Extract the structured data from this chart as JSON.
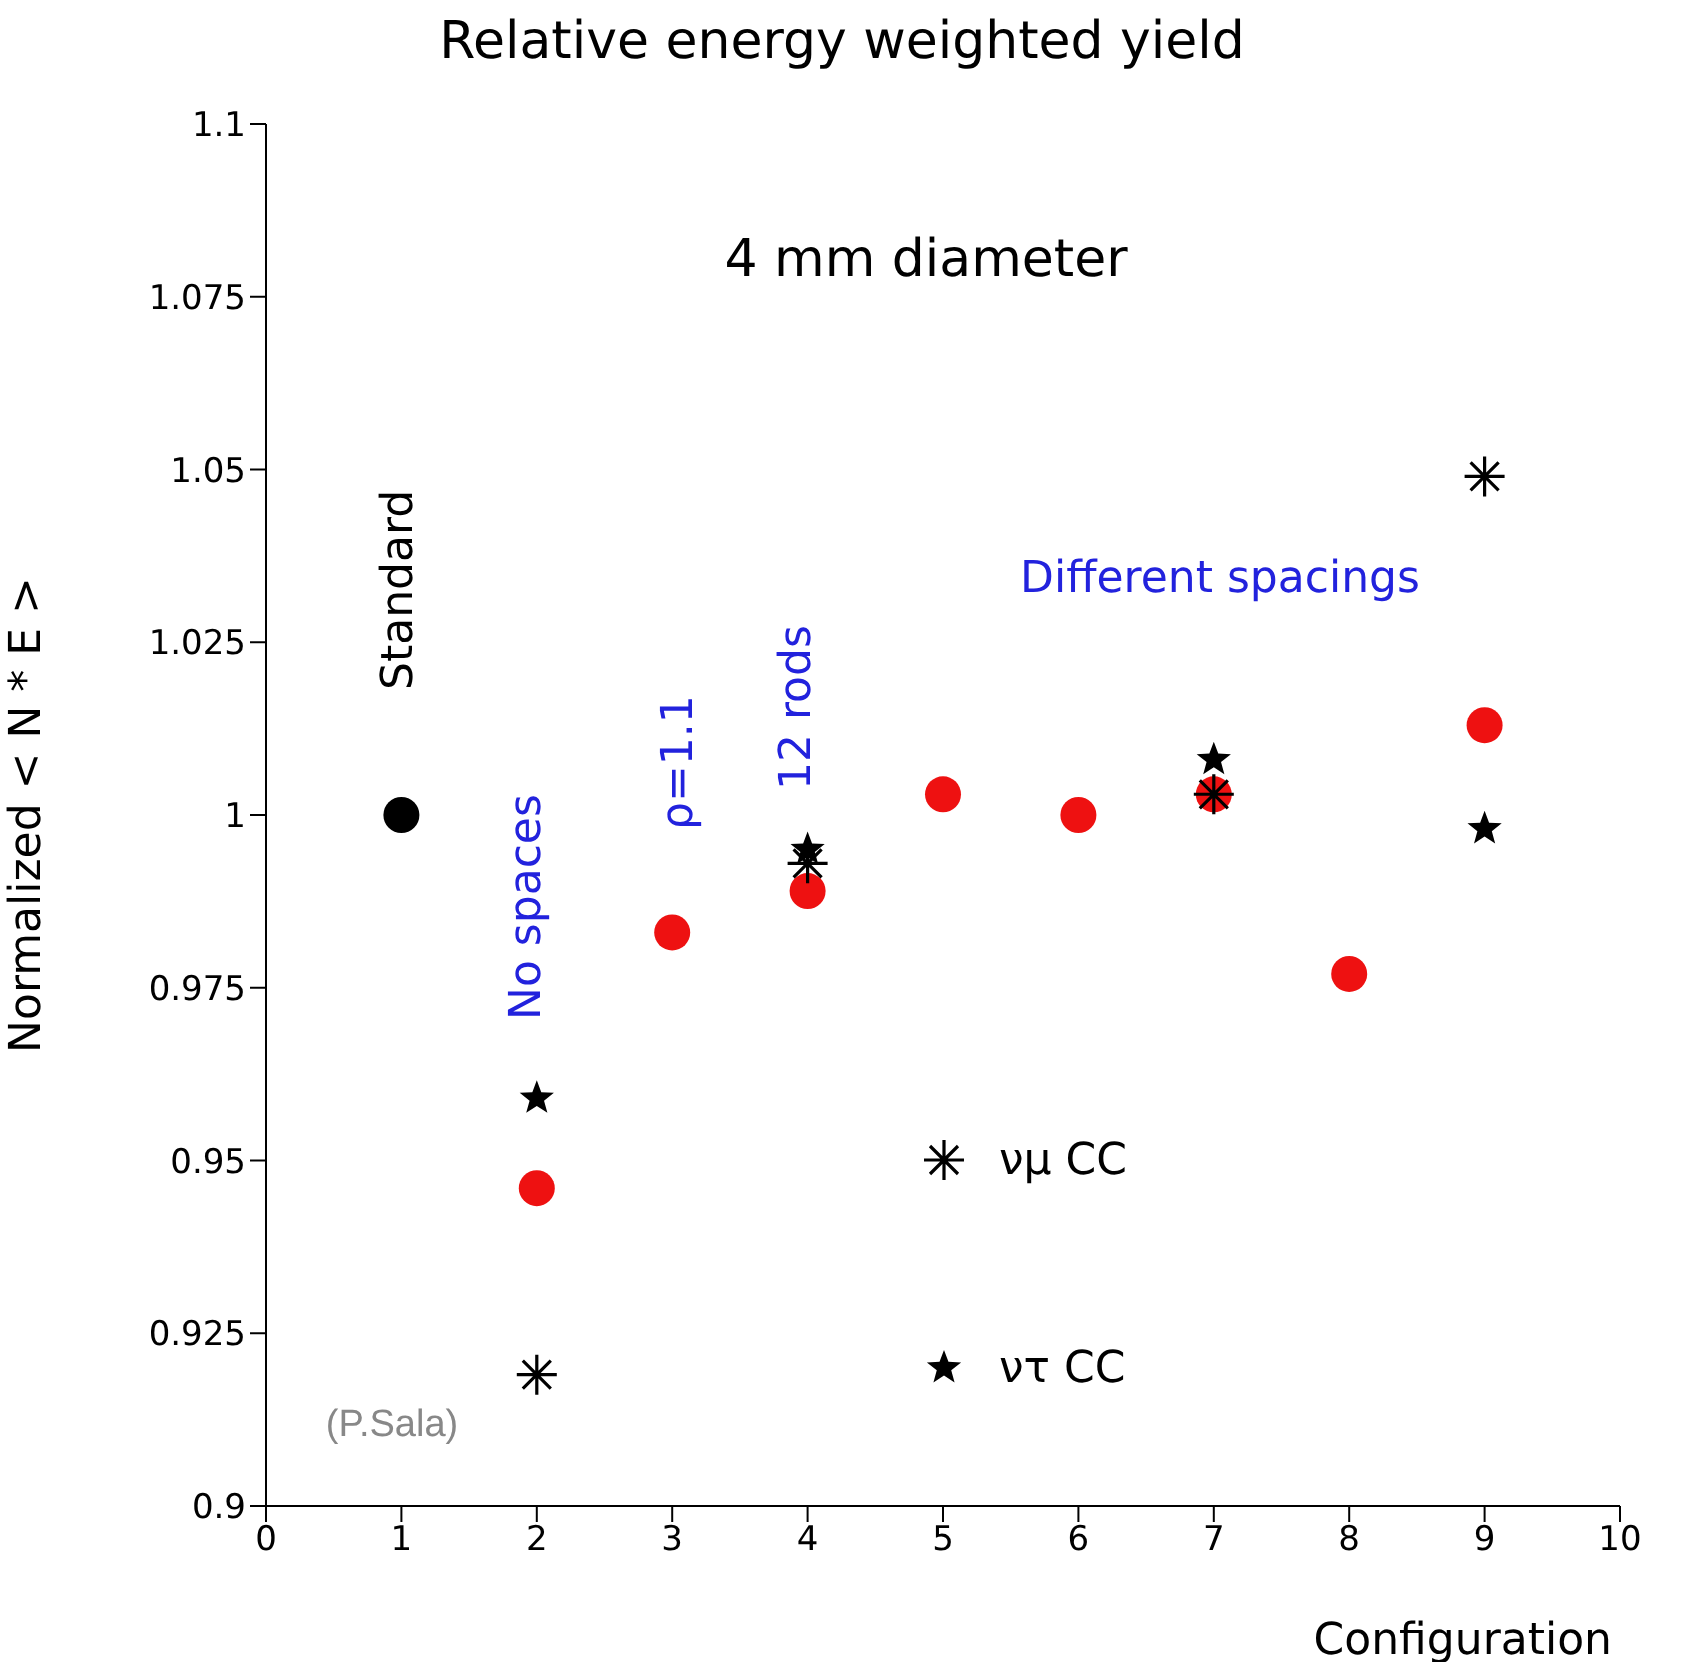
{
  "chart_data": {
    "type": "scatter",
    "title": "Relative energy weighted yield",
    "xlabel": "Configuration",
    "ylabel": "Normalized < N * E >",
    "xlim": [
      0,
      10
    ],
    "xticks": [
      0,
      1,
      2,
      3,
      4,
      5,
      6,
      7,
      8,
      9,
      10
    ],
    "ylim": [
      0.9,
      1.1
    ],
    "yticks": [
      0.9,
      0.925,
      0.95,
      0.975,
      1,
      1.025,
      1.05,
      1.075,
      1.1
    ],
    "grid": false,
    "legend": "bottom",
    "series": [
      {
        "color": "#000000",
        "marker": "circle",
        "x": [
          1
        ],
        "values": [
          1.0
        ]
      },
      {
        "color": "#ee1111",
        "marker": "circle",
        "x": [
          2,
          3,
          4,
          5,
          6,
          7,
          8,
          9
        ],
        "values": [
          0.946,
          0.983,
          0.989,
          1.003,
          1.0,
          1.003,
          0.977,
          1.013
        ]
      },
      {
        "name": "νμ CC",
        "color": "#000000",
        "marker": "cross",
        "x": [
          2,
          4,
          7,
          9
        ],
        "values": [
          0.919,
          0.993,
          1.003,
          1.049
        ]
      },
      {
        "name": "ντ CC",
        "color": "#000000",
        "marker": "star",
        "x": [
          2,
          4,
          7,
          9
        ],
        "values": [
          0.959,
          0.995,
          1.008,
          0.998
        ]
      }
    ],
    "annotations": [
      "Standard",
      "No spaces",
      "ρ=1.1",
      "12 rods",
      "Different spacings",
      "4 mm diameter",
      "(P.Sala)"
    ]
  }
}
